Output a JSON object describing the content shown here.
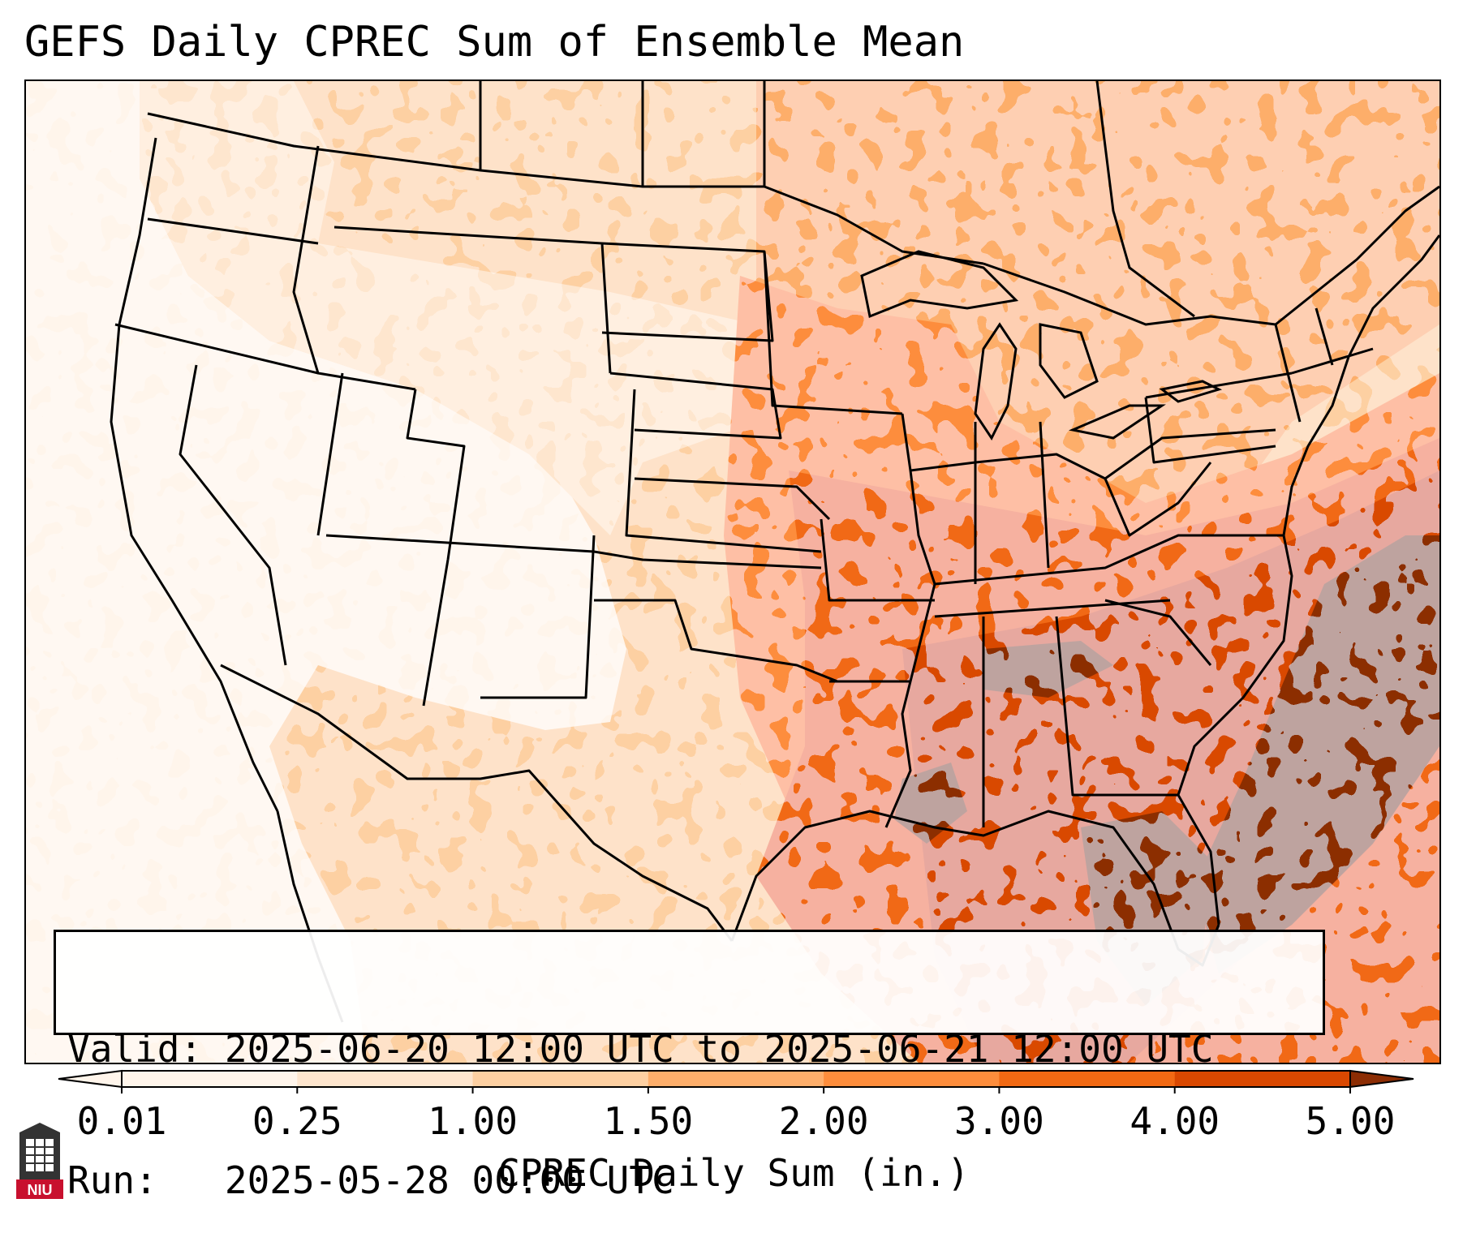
{
  "title": "GEFS Daily CPREC Sum of Ensemble Mean",
  "info": {
    "valid_label": "Valid:",
    "valid_text": "2025-06-20 12:00 UTC to 2025-06-21 12:00 UTC",
    "run_label": "Run:",
    "run_text": "2025-05-28 00:00 UTC"
  },
  "colorbar": {
    "label": "CPREC Daily Sum (in.)",
    "ticks": [
      "0.01",
      "0.25",
      "1.00",
      "1.50",
      "2.00",
      "3.00",
      "4.00",
      "5.00"
    ],
    "colors": [
      "#fff5eb",
      "#fee6ce",
      "#fdd0a2",
      "#fdae6b",
      "#fd8d3c",
      "#f16913",
      "#d94801",
      "#8c2d04"
    ],
    "extend": "both"
  },
  "logo": {
    "text": "NIU",
    "color": "#c8102e"
  },
  "map": {
    "projection": "lambert-conformal",
    "region": "Contiguous United States",
    "features": [
      "state-borders",
      "country-borders",
      "coastlines",
      "lakes"
    ]
  },
  "chart_data": {
    "type": "heatmap",
    "title": "GEFS Daily CPREC Sum of Ensemble Mean",
    "colorbar_label": "CPREC Daily Sum (in.)",
    "levels": [
      0.01,
      0.25,
      1.0,
      1.5,
      2.0,
      3.0,
      4.0,
      5.0
    ],
    "valid": "2025-06-20 12:00 UTC to 2025-06-21 12:00 UTC",
    "run": "2025-05-28 00:00 UTC"
  }
}
